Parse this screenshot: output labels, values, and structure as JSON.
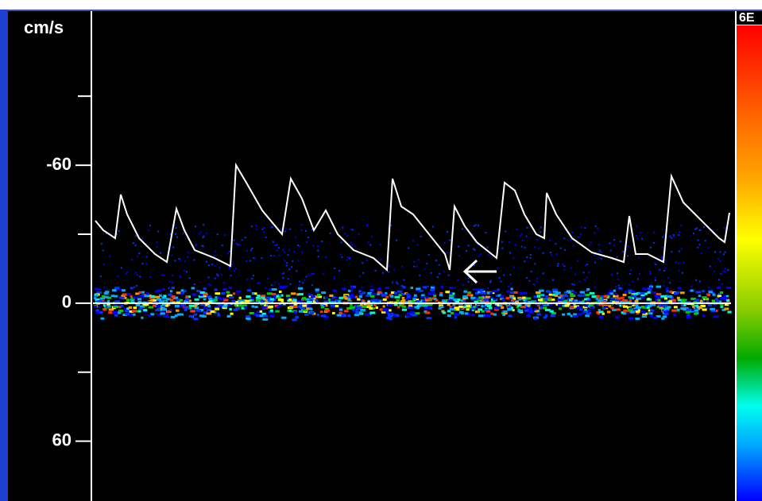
{
  "chart_data": {
    "type": "spectrogram",
    "ylabel": "cm/s",
    "ylim": [
      -127,
      86
    ],
    "yticks": [
      -60,
      0,
      60
    ],
    "minor_yticks": [
      -90,
      -30,
      30
    ],
    "colorbar_label": "6E"
  }
}
